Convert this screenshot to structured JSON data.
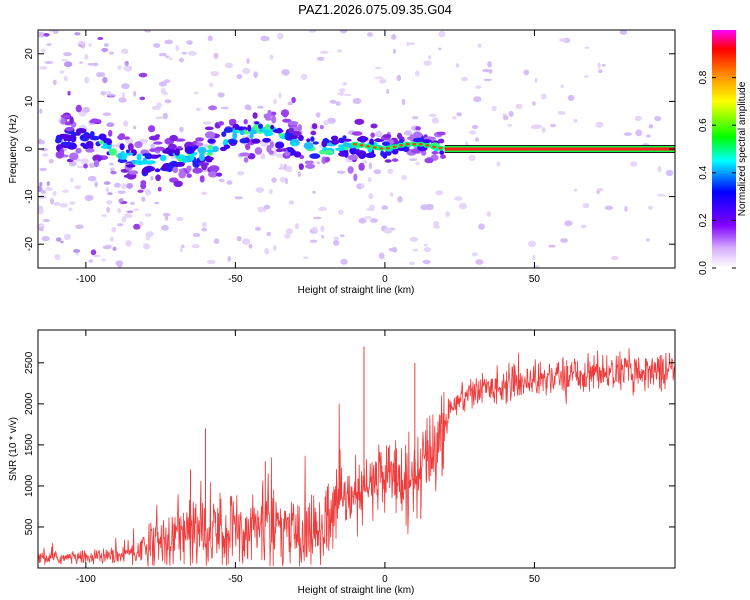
{
  "title": "PAZ1.2026.075.09.35.G04",
  "chart_data": [
    {
      "type": "heatmap",
      "xlabel": "Height of straight line (km)",
      "ylabel": "Frequency (Hz)",
      "xlim": [
        -116,
        97
      ],
      "ylim": [
        -25,
        25
      ],
      "xticks": [
        -100,
        -50,
        0,
        50
      ],
      "yticks": [
        -20,
        -10,
        0,
        10,
        20
      ],
      "ridge": {
        "description": "dominant frequency ridge",
        "x": [
          -98,
          -88,
          -80,
          -70,
          -60,
          -50,
          -40,
          -30,
          -20,
          -10,
          0,
          7,
          12,
          20,
          97
        ],
        "freq_hz": [
          2,
          -1,
          -3,
          -2,
          -1,
          3,
          4,
          1,
          0,
          1,
          0,
          1,
          1,
          0,
          0
        ]
      },
      "colorbar": {
        "label": "Normalized spectral amplitude",
        "ticks": [
          "0.0",
          "0.2",
          "0.4",
          "0.6",
          "0.8"
        ],
        "range": [
          0,
          1
        ]
      }
    },
    {
      "type": "line",
      "xlabel": "Height of straight line (km)",
      "ylabel": "SNR (10 * v/v)",
      "xlim": [
        -116,
        97
      ],
      "ylim": [
        0,
        2900
      ],
      "xticks": [
        -100,
        -50,
        0,
        50
      ],
      "yticks": [
        500,
        1000,
        1500,
        2000,
        2500
      ],
      "color": "#ef3b3b",
      "trend": {
        "x": [
          -116,
          -100,
          -88,
          -80,
          -70,
          -60,
          -50,
          -40,
          -30,
          -20,
          -15,
          -10,
          -5,
          0,
          5,
          10,
          13,
          18,
          22,
          26,
          35,
          50,
          70,
          97
        ],
        "snr": [
          120,
          130,
          150,
          260,
          420,
          450,
          480,
          500,
          460,
          430,
          800,
          850,
          1000,
          1150,
          1150,
          1050,
          1280,
          1580,
          1950,
          2100,
          2200,
          2300,
          2380,
          2420
        ]
      },
      "spikes": [
        {
          "x": -60,
          "snr": 1700
        },
        {
          "x": -65,
          "snr": 1200
        },
        {
          "x": -40,
          "snr": 1300
        },
        {
          "x": -7,
          "snr": 2700
        },
        {
          "x": 10,
          "snr": 2500
        },
        {
          "x": 12,
          "snr": 600
        }
      ]
    }
  ]
}
